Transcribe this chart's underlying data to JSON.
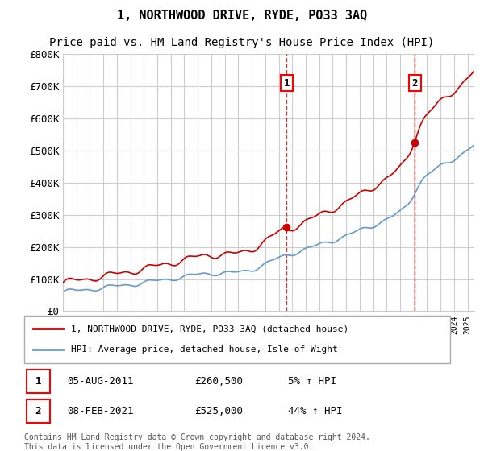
{
  "title": "1, NORTHWOOD DRIVE, RYDE, PO33 3AQ",
  "subtitle": "Price paid vs. HM Land Registry's House Price Index (HPI)",
  "ylabel_ticks": [
    "£0",
    "£100K",
    "£200K",
    "£300K",
    "£400K",
    "£500K",
    "£600K",
    "£700K",
    "£800K"
  ],
  "ylim": [
    0,
    800000
  ],
  "xlim_start": 1995.0,
  "xlim_end": 2025.5,
  "sale1_date": 2011.58,
  "sale1_price": 260500,
  "sale2_date": 2021.08,
  "sale2_price": 525000,
  "line_color_property": "#cc0000",
  "line_color_hpi": "#6699cc",
  "annotation_table": [
    {
      "num": "1",
      "date": "05-AUG-2011",
      "price": "£260,500",
      "hpi": "5% ↑ HPI"
    },
    {
      "num": "2",
      "date": "08-FEB-2021",
      "price": "£525,000",
      "hpi": "44% ↑ HPI"
    }
  ],
  "legend_property": "1, NORTHWOOD DRIVE, RYDE, PO33 3AQ (detached house)",
  "legend_hpi": "HPI: Average price, detached house, Isle of Wight",
  "footer": "Contains HM Land Registry data © Crown copyright and database right 2024.\nThis data is licensed under the Open Government Licence v3.0.",
  "background_color": "#ffffff",
  "grid_color": "#cccccc",
  "title_fontsize": 11,
  "subtitle_fontsize": 10
}
